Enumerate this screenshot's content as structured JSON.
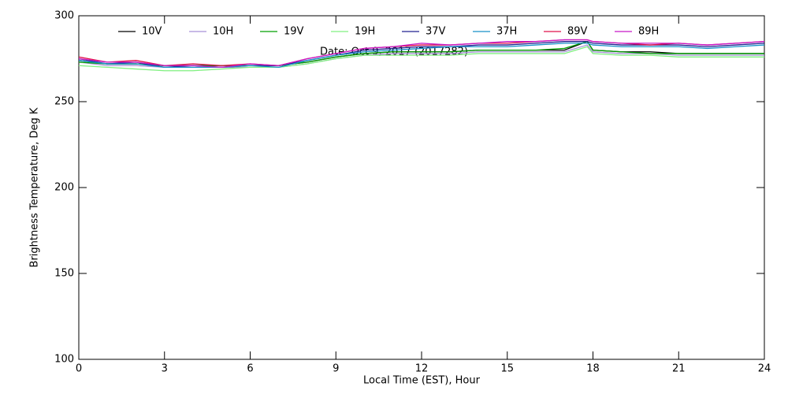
{
  "chart_data": {
    "type": "line",
    "title": "Date: Oct  9, 2017 (2017282)",
    "x_label": "Local Time (EST), Hour",
    "y_label": "Brightness Temperature, Deg K",
    "x": [
      0,
      1,
      2,
      3,
      4,
      5,
      6,
      7,
      8,
      9,
      10,
      11,
      12,
      13,
      14,
      15,
      16,
      17,
      17.8,
      18,
      19,
      20,
      21,
      22,
      23,
      24
    ],
    "xlim": [
      0,
      24
    ],
    "xticks": [
      0,
      3,
      6,
      9,
      12,
      15,
      18,
      21,
      24
    ],
    "ylim": [
      100,
      300
    ],
    "yticks": [
      100,
      150,
      200,
      250,
      300
    ],
    "series": [
      {
        "name": "10V",
        "color": "#000000",
        "values": [
          274,
          272,
          272,
          271,
          271,
          271,
          271,
          271,
          273,
          276,
          278,
          279,
          279,
          279,
          280,
          280,
          280,
          280,
          285,
          280,
          279,
          279,
          278,
          278,
          278,
          278
        ]
      },
      {
        "name": "10H",
        "color": "#a890d8",
        "values": [
          273,
          271,
          271,
          270,
          270,
          270,
          270,
          270,
          272,
          275,
          277,
          278,
          278,
          278,
          279,
          279,
          279,
          279,
          283,
          279,
          278,
          278,
          277,
          277,
          277,
          277
        ]
      },
      {
        "name": "19V",
        "color": "#00a000",
        "values": [
          273,
          272,
          272,
          271,
          271,
          271,
          271,
          271,
          273,
          276,
          278,
          279,
          279,
          279,
          280,
          280,
          280,
          281,
          285,
          280,
          279,
          278,
          278,
          278,
          278,
          278
        ]
      },
      {
        "name": "19H",
        "color": "#80f080",
        "values": [
          271,
          270,
          269,
          268,
          268,
          269,
          270,
          270,
          272,
          275,
          277,
          277,
          277,
          277,
          278,
          278,
          278,
          278,
          282,
          278,
          277,
          277,
          276,
          276,
          276,
          276
        ]
      },
      {
        "name": "37V",
        "color": "#202090",
        "values": [
          275,
          272,
          273,
          270,
          271,
          270,
          271,
          271,
          274,
          277,
          280,
          281,
          282,
          282,
          283,
          283,
          284,
          285,
          285,
          284,
          283,
          283,
          283,
          282,
          283,
          284
        ]
      },
      {
        "name": "37H",
        "color": "#1890c8",
        "values": [
          274,
          272,
          272,
          270,
          270,
          270,
          271,
          270,
          274,
          277,
          279,
          280,
          281,
          282,
          282,
          282,
          283,
          284,
          284,
          283,
          282,
          282,
          282,
          281,
          282,
          283
        ]
      },
      {
        "name": "89V",
        "color": "#e0104a",
        "values": [
          276,
          273,
          274,
          271,
          272,
          271,
          272,
          271,
          275,
          278,
          281,
          282,
          283,
          283,
          284,
          284,
          285,
          286,
          286,
          285,
          284,
          283,
          284,
          283,
          284,
          285
        ]
      },
      {
        "name": "89H",
        "color": "#c818c8",
        "values": [
          275,
          273,
          273,
          271,
          271,
          270,
          272,
          271,
          275,
          278,
          281,
          282,
          284,
          283,
          284,
          285,
          285,
          286,
          286,
          285,
          284,
          284,
          284,
          283,
          284,
          285
        ]
      }
    ]
  }
}
